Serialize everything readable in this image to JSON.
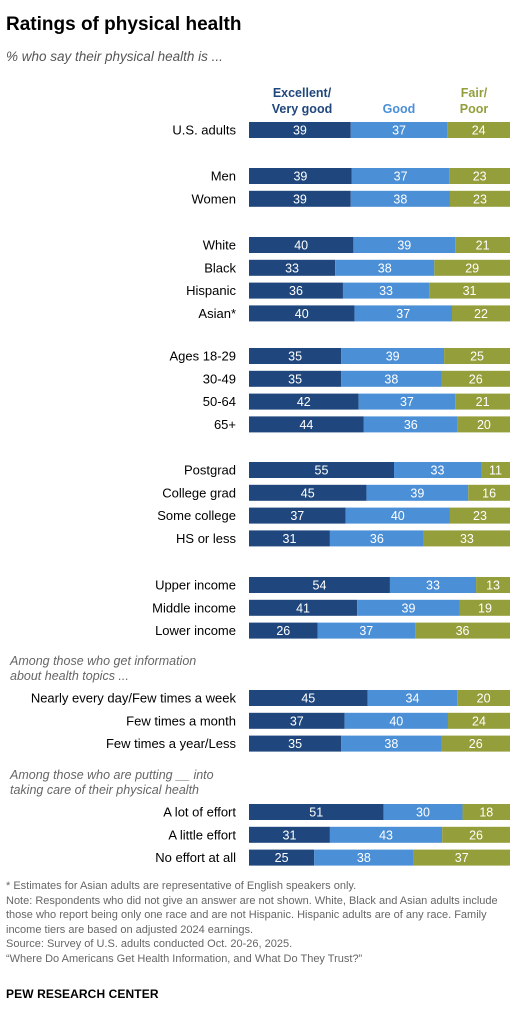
{
  "title": "Ratings of physical health",
  "subtitle": "% who say their physical health is ...",
  "chart_data": {
    "type": "bar",
    "stacked": true,
    "orientation": "horizontal",
    "series": [
      {
        "name": "Excellent/\nVery good",
        "color": "#1f477d"
      },
      {
        "name": "Good",
        "color": "#4b8fd6"
      },
      {
        "name": "Fair/\nPoor",
        "color": "#949e3b"
      }
    ],
    "groups": [
      {
        "heading": "",
        "rows": [
          {
            "label": "U.S. adults",
            "values": [
              39,
              37,
              24
            ]
          }
        ]
      },
      {
        "heading": "",
        "rows": [
          {
            "label": "Men",
            "values": [
              39,
              37,
              23
            ]
          },
          {
            "label": "Women",
            "values": [
              39,
              38,
              23
            ]
          }
        ]
      },
      {
        "heading": "",
        "rows": [
          {
            "label": "White",
            "values": [
              40,
              39,
              21
            ]
          },
          {
            "label": "Black",
            "values": [
              33,
              38,
              29
            ]
          },
          {
            "label": "Hispanic",
            "values": [
              36,
              33,
              31
            ]
          },
          {
            "label": "Asian*",
            "values": [
              40,
              37,
              22
            ]
          }
        ]
      },
      {
        "heading": "",
        "rows": [
          {
            "label": "Ages 18-29",
            "values": [
              35,
              39,
              25
            ]
          },
          {
            "label": "30-49",
            "values": [
              35,
              38,
              26
            ]
          },
          {
            "label": "50-64",
            "values": [
              42,
              37,
              21
            ]
          },
          {
            "label": "65+",
            "values": [
              44,
              36,
              20
            ]
          }
        ]
      },
      {
        "heading": "",
        "rows": [
          {
            "label": "Postgrad",
            "values": [
              55,
              33,
              11
            ]
          },
          {
            "label": "College grad",
            "values": [
              45,
              39,
              16
            ]
          },
          {
            "label": "Some college",
            "values": [
              37,
              40,
              23
            ]
          },
          {
            "label": "HS or less",
            "values": [
              31,
              36,
              33
            ]
          }
        ]
      },
      {
        "heading": "",
        "rows": [
          {
            "label": "Upper income",
            "values": [
              54,
              33,
              13
            ]
          },
          {
            "label": "Middle income",
            "values": [
              41,
              39,
              19
            ]
          },
          {
            "label": "Lower income",
            "values": [
              26,
              37,
              36
            ]
          }
        ]
      },
      {
        "heading": "Among those who get information\nabout health topics ...",
        "rows": [
          {
            "label": "Nearly every day/Few times a week",
            "values": [
              45,
              34,
              20
            ]
          },
          {
            "label": "Few times a month",
            "values": [
              37,
              40,
              24
            ]
          },
          {
            "label": "Few times a year/Less",
            "values": [
              35,
              38,
              26
            ]
          }
        ]
      },
      {
        "heading": "Among those who are putting __ into\ntaking care of their physical health",
        "rows": [
          {
            "label": "A lot of effort",
            "values": [
              51,
              30,
              18
            ]
          },
          {
            "label": "A little effort",
            "values": [
              31,
              43,
              26
            ]
          },
          {
            "label": "No effort at all",
            "values": [
              25,
              38,
              37
            ]
          }
        ]
      }
    ]
  },
  "notes": [
    "* Estimates for Asian adults are representative of English speakers only.",
    "Note: Respondents who did not give an answer are not shown. White, Black and Asian adults include those who report being only one race and are not Hispanic. Hispanic adults are of any race. Family income tiers are based on adjusted 2024 earnings.",
    "Source: Survey of U.S. adults conducted Oct. 20-26, 2025.",
    "“Where Do Americans Get Health Information, and What Do They Trust?”"
  ],
  "source_org": "PEW RESEARCH CENTER"
}
